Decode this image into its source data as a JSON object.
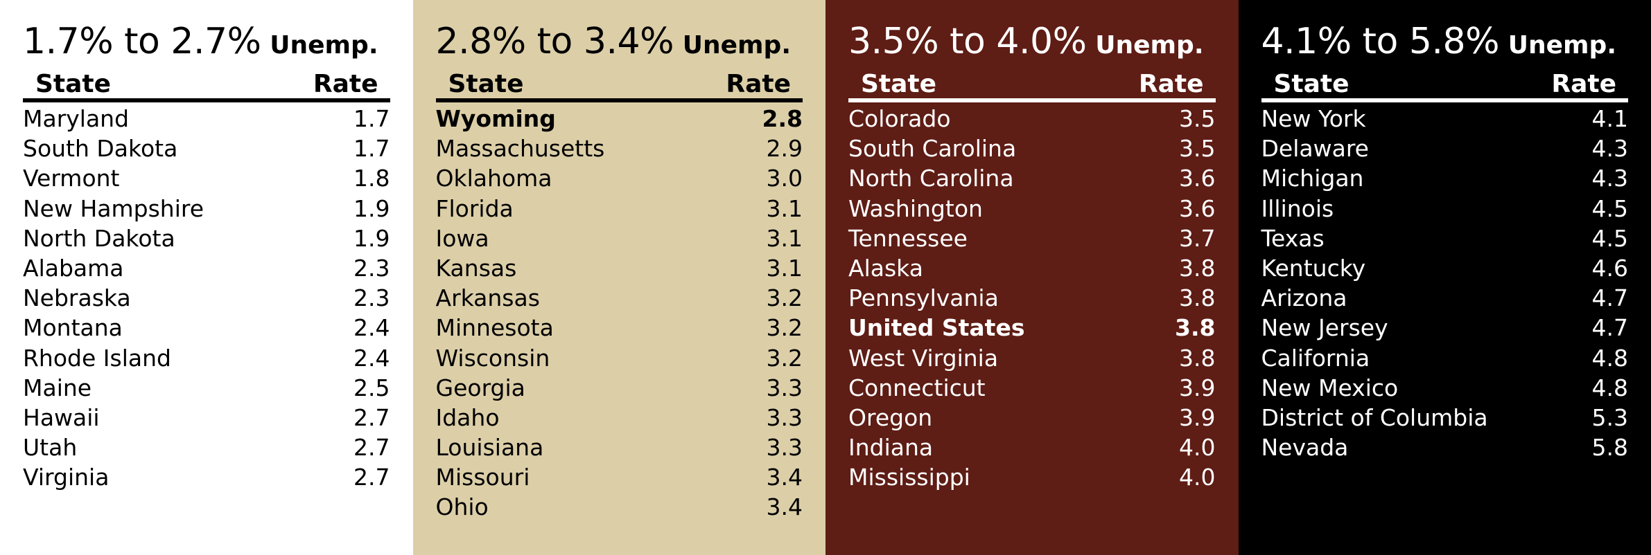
{
  "colors": {
    "panel1_bg": "#ffffff",
    "panel2_bg": "#dccfa8",
    "panel3_bg": "#5e1d15",
    "panel4_bg": "#000000"
  },
  "panels": [
    {
      "range": "1.7% to 2.7%",
      "unemp_label": "Unemp.",
      "state_header": "State",
      "rate_header": "Rate",
      "rows": [
        {
          "state": "Maryland",
          "rate": "1.7"
        },
        {
          "state": "South Dakota",
          "rate": "1.7"
        },
        {
          "state": "Vermont",
          "rate": "1.8"
        },
        {
          "state": "New Hampshire",
          "rate": "1.9"
        },
        {
          "state": "North Dakota",
          "rate": "1.9"
        },
        {
          "state": "Alabama",
          "rate": "2.3"
        },
        {
          "state": "Nebraska",
          "rate": "2.3"
        },
        {
          "state": "Montana",
          "rate": "2.4"
        },
        {
          "state": "Rhode Island",
          "rate": "2.4"
        },
        {
          "state": "Maine",
          "rate": "2.5"
        },
        {
          "state": "Hawaii",
          "rate": "2.7"
        },
        {
          "state": "Utah",
          "rate": "2.7"
        },
        {
          "state": "Virginia",
          "rate": "2.7"
        }
      ]
    },
    {
      "range": "2.8% to 3.4%",
      "unemp_label": "Unemp.",
      "state_header": "State",
      "rate_header": "Rate",
      "rows": [
        {
          "state": "Wyoming",
          "rate": "2.8",
          "bold": true
        },
        {
          "state": "Massachusetts",
          "rate": "2.9"
        },
        {
          "state": "Oklahoma",
          "rate": "3.0"
        },
        {
          "state": "Florida",
          "rate": "3.1"
        },
        {
          "state": "Iowa",
          "rate": "3.1"
        },
        {
          "state": "Kansas",
          "rate": "3.1"
        },
        {
          "state": "Arkansas",
          "rate": "3.2"
        },
        {
          "state": "Minnesota",
          "rate": "3.2"
        },
        {
          "state": "Wisconsin",
          "rate": "3.2"
        },
        {
          "state": "Georgia",
          "rate": "3.3"
        },
        {
          "state": "Idaho",
          "rate": "3.3"
        },
        {
          "state": "Louisiana",
          "rate": "3.3"
        },
        {
          "state": "Missouri",
          "rate": "3.4"
        },
        {
          "state": "Ohio",
          "rate": "3.4"
        }
      ]
    },
    {
      "range": "3.5% to 4.0%",
      "unemp_label": "Unemp.",
      "state_header": "State",
      "rate_header": "Rate",
      "rows": [
        {
          "state": "Colorado",
          "rate": "3.5"
        },
        {
          "state": "South Carolina",
          "rate": "3.5"
        },
        {
          "state": "North Carolina",
          "rate": "3.6"
        },
        {
          "state": "Washington",
          "rate": "3.6"
        },
        {
          "state": "Tennessee",
          "rate": "3.7"
        },
        {
          "state": "Alaska",
          "rate": "3.8"
        },
        {
          "state": "Pennsylvania",
          "rate": "3.8"
        },
        {
          "state": "United States",
          "rate": "3.8",
          "bold": true
        },
        {
          "state": "West Virginia",
          "rate": "3.8"
        },
        {
          "state": "Connecticut",
          "rate": "3.9"
        },
        {
          "state": "Oregon",
          "rate": "3.9"
        },
        {
          "state": "Indiana",
          "rate": "4.0"
        },
        {
          "state": "Mississippi",
          "rate": "4.0"
        }
      ]
    },
    {
      "range": "4.1% to 5.8%",
      "unemp_label": "Unemp.",
      "state_header": "State",
      "rate_header": "Rate",
      "rows": [
        {
          "state": "New York",
          "rate": "4.1"
        },
        {
          "state": "Delaware",
          "rate": "4.3"
        },
        {
          "state": "Michigan",
          "rate": "4.3"
        },
        {
          "state": "Illinois",
          "rate": "4.5"
        },
        {
          "state": "Texas",
          "rate": "4.5"
        },
        {
          "state": "Kentucky",
          "rate": "4.6"
        },
        {
          "state": "Arizona",
          "rate": "4.7"
        },
        {
          "state": "New Jersey",
          "rate": "4.7"
        },
        {
          "state": "California",
          "rate": "4.8"
        },
        {
          "state": "New Mexico",
          "rate": "4.8"
        },
        {
          "state": "District of Columbia",
          "rate": "5.3"
        },
        {
          "state": "Nevada",
          "rate": "5.8"
        }
      ]
    }
  ]
}
